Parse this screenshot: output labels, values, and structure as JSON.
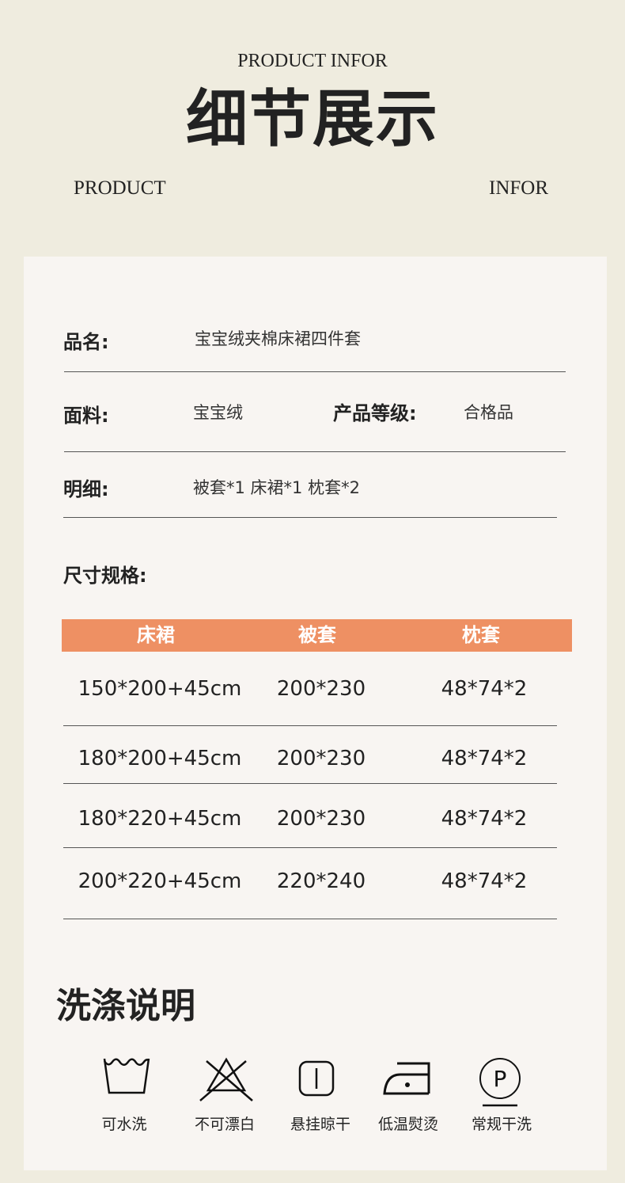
{
  "header": {
    "subtitle": "PRODUCT INFOR",
    "title": "细节展示",
    "left": "PRODUCT",
    "right": "INFOR"
  },
  "info": {
    "name_label": "品名:",
    "name_value": "宝宝绒夹棉床裙四件套",
    "fabric_label": "面料:",
    "fabric_value": "宝宝绒",
    "grade_label": "产品等级:",
    "grade_value": "合格品",
    "detail_label": "明细:",
    "detail_value": "被套*1  床裙*1  枕套*2",
    "size_label": "尺寸规格:"
  },
  "table": {
    "header_color": "#ee9063",
    "columns": [
      "床裙",
      "被套",
      "枕套"
    ],
    "rows": [
      [
        "150*200+45cm",
        "200*230",
        "48*74*2"
      ],
      [
        "180*200+45cm",
        "200*230",
        "48*74*2"
      ],
      [
        "180*220+45cm",
        "200*230",
        "48*74*2"
      ],
      [
        "200*220+45cm",
        "220*240",
        "48*74*2"
      ]
    ]
  },
  "care": {
    "title": "洗涤说明",
    "items": [
      {
        "icon": "washable-icon",
        "label": "可水洗"
      },
      {
        "icon": "no-bleach-icon",
        "label": "不可漂白"
      },
      {
        "icon": "hang-dry-icon",
        "label": "悬挂晾干"
      },
      {
        "icon": "low-iron-icon",
        "label": "低温熨烫"
      },
      {
        "icon": "dry-clean-icon",
        "label": "常规干洗"
      }
    ]
  }
}
